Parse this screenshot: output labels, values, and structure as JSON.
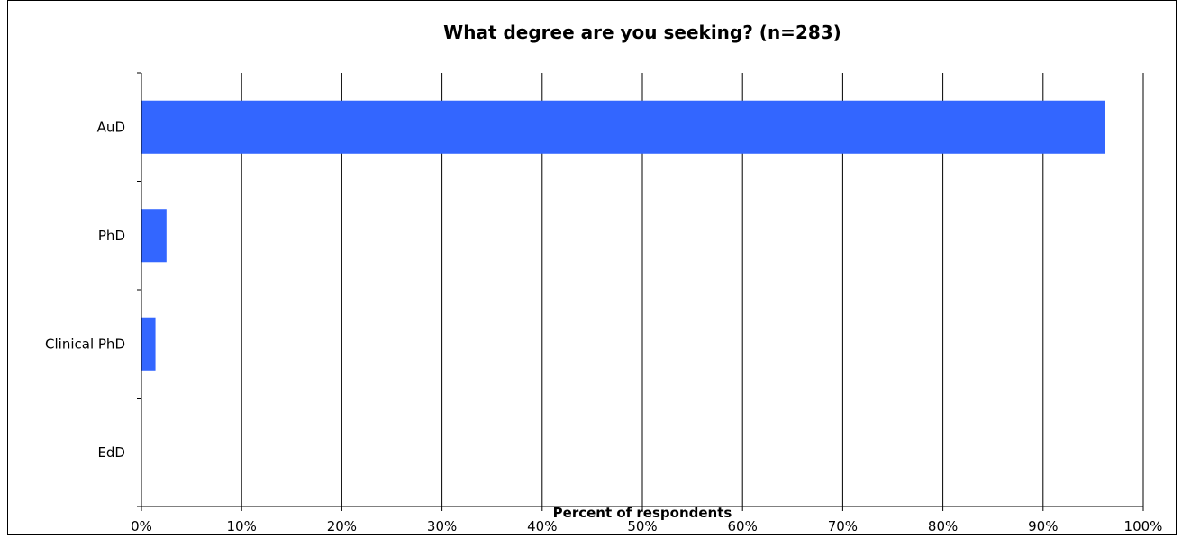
{
  "chart_data": {
    "type": "bar",
    "orientation": "horizontal",
    "title": "What degree are you seeking? (n=283)",
    "xlabel": "Percent of respondents",
    "ylabel": "",
    "categories": [
      "AuD",
      "PhD",
      "Clinical PhD",
      "EdD"
    ],
    "values": [
      96.2,
      2.5,
      1.4,
      0
    ],
    "xlim": [
      0,
      100
    ],
    "x_ticks": [
      "0%",
      "10%",
      "20%",
      "30%",
      "40%",
      "50%",
      "60%",
      "70%",
      "80%",
      "90%",
      "100%"
    ],
    "grid": true,
    "legend": "none",
    "bar_color": "#3366FF"
  }
}
